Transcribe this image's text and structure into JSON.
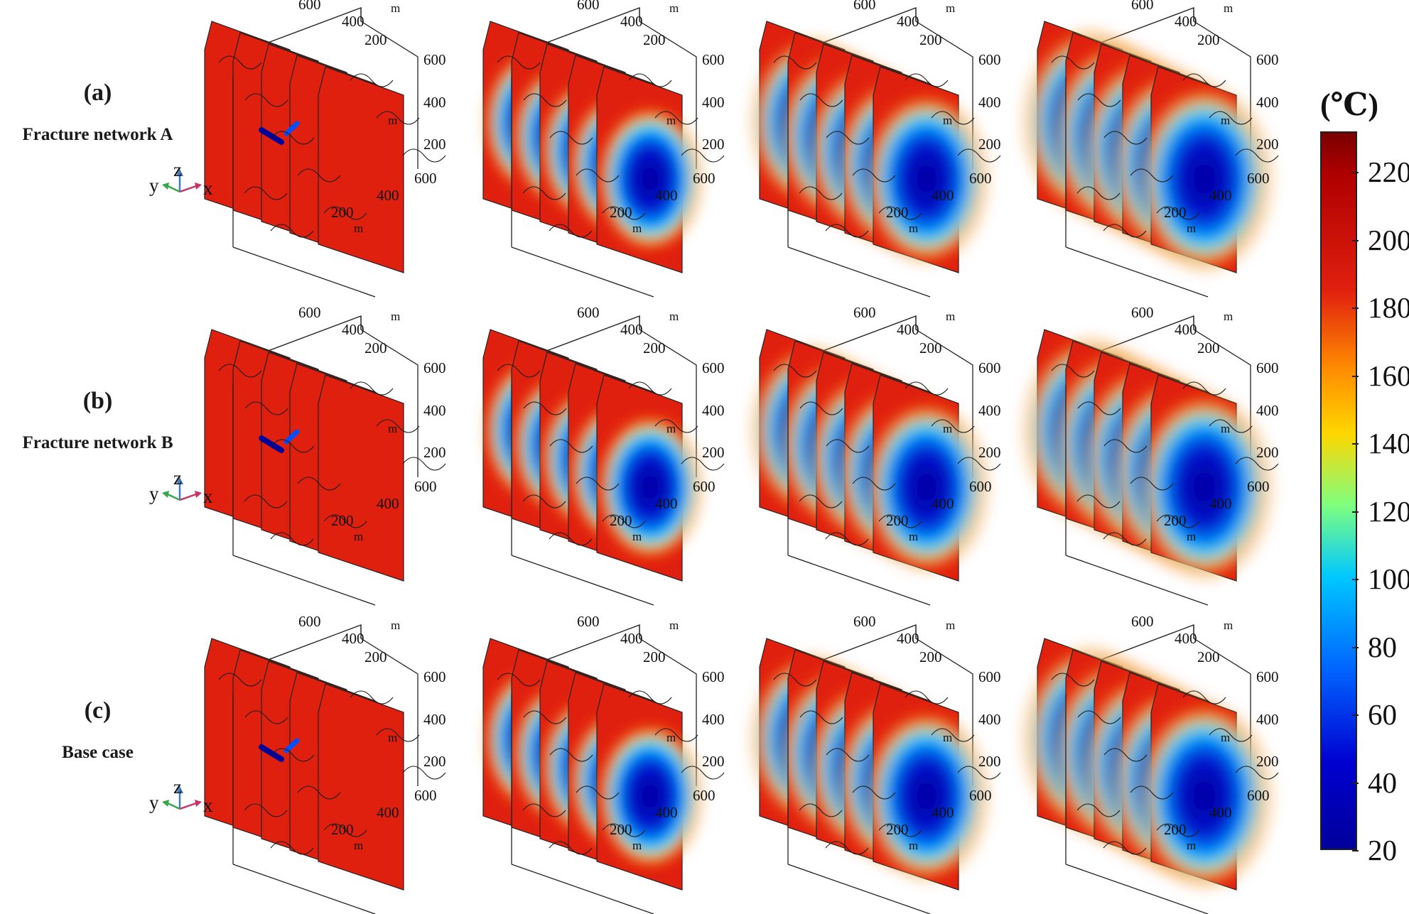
{
  "rows": [
    {
      "letter": "(a)",
      "name": "Fracture network A",
      "cold_level": [
        0.06,
        0.62,
        0.85,
        1.0
      ]
    },
    {
      "letter": "(b)",
      "name": "Fracture network B",
      "cold_level": [
        0.06,
        0.62,
        0.85,
        1.0
      ]
    },
    {
      "letter": "(c)",
      "name": "Base case",
      "cold_level": [
        0.06,
        0.62,
        0.85,
        1.0
      ]
    }
  ],
  "axes": {
    "top_ticks": [
      "600",
      "400",
      "200"
    ],
    "right_ticks": [
      "600",
      "400",
      "200"
    ],
    "bottom_ticks": [
      "600",
      "400",
      "200"
    ],
    "unit": "m"
  },
  "triad": {
    "x": "x",
    "y": "y",
    "z": "z"
  },
  "colorbar": {
    "unit": "(℃)",
    "min": 20,
    "max": 232,
    "ticks": [
      "220",
      "200",
      "180",
      "160",
      "140",
      "120",
      "100",
      "80",
      "60",
      "40",
      "20"
    ],
    "tick_values": [
      220,
      200,
      180,
      160,
      140,
      120,
      100,
      80,
      60,
      40,
      20
    ],
    "colors": {
      "hot": "#e0200f",
      "warm": "#ff8c00",
      "mid": "#ffd700",
      "cool": "#00c8ff",
      "cold": "#00009a",
      "max": "#7a0000"
    }
  }
}
